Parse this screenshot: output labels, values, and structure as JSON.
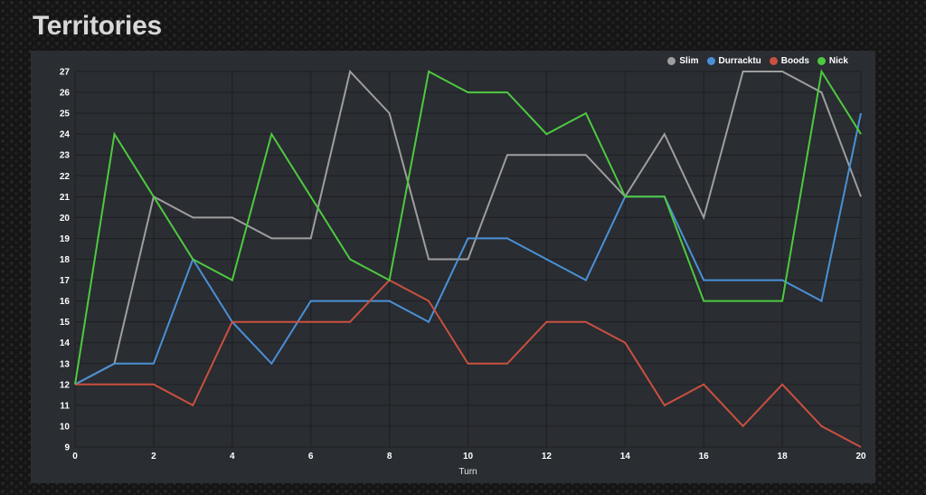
{
  "page": {
    "title": "Territories"
  },
  "chart_data": {
    "type": "line",
    "title": "Territories",
    "xlabel": "Turn",
    "ylabel": "",
    "x": [
      0,
      1,
      2,
      3,
      4,
      5,
      6,
      7,
      8,
      9,
      10,
      11,
      12,
      13,
      14,
      15,
      16,
      17,
      18,
      19,
      20
    ],
    "xlim": [
      0,
      20
    ],
    "ylim": [
      9,
      27
    ],
    "x_ticks": [
      0,
      2,
      4,
      6,
      8,
      10,
      12,
      14,
      16,
      18,
      20
    ],
    "y_ticks": [
      9,
      10,
      11,
      12,
      13,
      14,
      15,
      16,
      17,
      18,
      19,
      20,
      21,
      22,
      23,
      24,
      25,
      26,
      27
    ],
    "grid": true,
    "legend_position": "top-right",
    "series": [
      {
        "name": "Slim",
        "color": "#9e9e9e",
        "values": [
          12,
          13,
          21,
          20,
          20,
          19,
          19,
          27,
          25,
          18,
          18,
          23,
          23,
          23,
          21,
          24,
          20,
          27,
          27,
          26,
          21
        ]
      },
      {
        "name": "Durracktu",
        "color": "#4a90d6",
        "values": [
          12,
          13,
          13,
          18,
          15,
          13,
          16,
          16,
          16,
          15,
          19,
          19,
          18,
          17,
          21,
          21,
          17,
          17,
          17,
          16,
          25
        ]
      },
      {
        "name": "Boods",
        "color": "#c9503f",
        "values": [
          12,
          12,
          12,
          11,
          15,
          15,
          15,
          15,
          17,
          16,
          13,
          13,
          15,
          15,
          14,
          11,
          12,
          10,
          12,
          10,
          9
        ]
      },
      {
        "name": "Nick",
        "color": "#4ec940",
        "values": [
          12,
          24,
          21,
          18,
          17,
          24,
          21,
          18,
          17,
          27,
          26,
          26,
          24,
          25,
          21,
          21,
          16,
          16,
          16,
          27,
          24
        ]
      }
    ]
  }
}
